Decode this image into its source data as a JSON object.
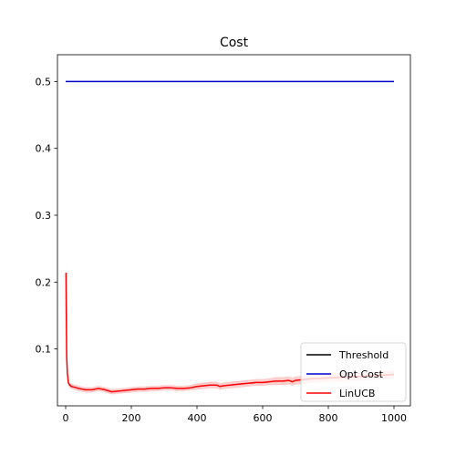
{
  "chart_data": {
    "type": "line",
    "title": "Cost",
    "xlabel": "",
    "ylabel": "",
    "xlim": [
      -25,
      1050
    ],
    "ylim": [
      0.015,
      0.54
    ],
    "xticks": [
      0,
      200,
      400,
      600,
      800,
      1000
    ],
    "xtick_labels": [
      "0",
      "200",
      "400",
      "600",
      "800",
      "1000"
    ],
    "yticks": [
      0.1,
      0.2,
      0.3,
      0.4,
      0.5
    ],
    "ytick_labels": [
      "0.1",
      "0.2",
      "0.3",
      "0.4",
      "0.5"
    ],
    "grid": false,
    "legend_position": "lower-right",
    "series": [
      {
        "name": "Threshold",
        "color": "#000000",
        "x": [],
        "y": []
      },
      {
        "name": "Opt Cost",
        "color": "#0000cc",
        "x": [
          0,
          1000
        ],
        "y": [
          0.5,
          0.5
        ]
      },
      {
        "name": "LinUCB",
        "color": "#ff0000",
        "band_color": "#ffcccc",
        "x": [
          1,
          3,
          5,
          8,
          12,
          18,
          25,
          40,
          60,
          80,
          100,
          120,
          140,
          160,
          180,
          200,
          220,
          240,
          260,
          280,
          300,
          320,
          340,
          360,
          380,
          400,
          420,
          440,
          460,
          470,
          480,
          500,
          520,
          540,
          560,
          580,
          600,
          620,
          640,
          660,
          680,
          690,
          700,
          720,
          740,
          760,
          780,
          800,
          820,
          840,
          860,
          880,
          900,
          920,
          940,
          960,
          980,
          1000
        ],
        "y": [
          0.214,
          0.09,
          0.065,
          0.05,
          0.046,
          0.044,
          0.043,
          0.041,
          0.039,
          0.039,
          0.041,
          0.039,
          0.036,
          0.037,
          0.038,
          0.039,
          0.04,
          0.04,
          0.041,
          0.041,
          0.042,
          0.042,
          0.041,
          0.041,
          0.042,
          0.044,
          0.045,
          0.046,
          0.046,
          0.044,
          0.045,
          0.046,
          0.047,
          0.048,
          0.049,
          0.05,
          0.05,
          0.051,
          0.052,
          0.052,
          0.053,
          0.051,
          0.053,
          0.054,
          0.055,
          0.056,
          0.056,
          0.057,
          0.057,
          0.058,
          0.058,
          0.059,
          0.059,
          0.06,
          0.06,
          0.061,
          0.061,
          0.062
        ],
        "band": [
          0.018,
          0.01,
          0.006,
          0.004,
          0.004,
          0.004,
          0.004,
          0.004,
          0.004,
          0.004,
          0.004,
          0.004,
          0.004,
          0.004,
          0.004,
          0.004,
          0.004,
          0.004,
          0.004,
          0.004,
          0.004,
          0.004,
          0.004,
          0.004,
          0.004,
          0.005,
          0.005,
          0.005,
          0.005,
          0.005,
          0.005,
          0.005,
          0.005,
          0.005,
          0.005,
          0.005,
          0.005,
          0.005,
          0.006,
          0.006,
          0.006,
          0.006,
          0.006,
          0.006,
          0.006,
          0.006,
          0.006,
          0.006,
          0.006,
          0.006,
          0.006,
          0.006,
          0.006,
          0.006,
          0.006,
          0.006,
          0.006,
          0.006
        ]
      }
    ]
  }
}
